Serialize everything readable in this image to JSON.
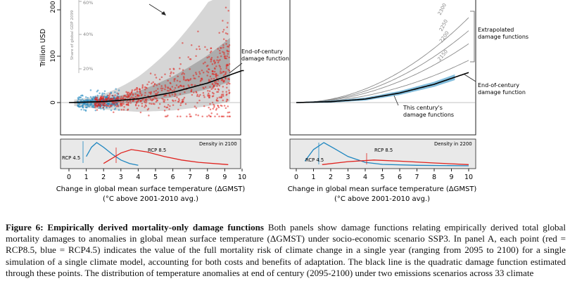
{
  "figure": {
    "panel_a": {
      "y_axis_label": "Trillion USD",
      "y_ticks": [
        "0",
        "100",
        "200"
      ],
      "share_axis_label": "Share of global GDP 2099",
      "share_ticks": [
        "20%",
        "40%",
        "60%"
      ],
      "annotation": "End-of-century damage function",
      "density_label": "Density in 2100",
      "rcp45_label": "RCP 4.5",
      "rcp85_label": "RCP 8.5",
      "x_ticks": [
        "0",
        "1",
        "2",
        "3",
        "4",
        "5",
        "6",
        "7",
        "8",
        "9",
        "10"
      ],
      "x_label_line1": "Change in global mean surface temperature (ΔGMST)",
      "x_label_line2": "(°C above 2001-2010 avg.)"
    },
    "panel_b": {
      "extrapolated_label": "Extrapolated damage functions",
      "end_label": "End-of-century damage function",
      "this_century_label": "This century's damage functions",
      "year_labels": [
        "2300",
        "2250",
        "2200",
        "2150"
      ],
      "density_label": "Density in 2200",
      "rcp45_label": "RCP 4.5",
      "rcp85_label": "RCP 8.5",
      "x_ticks": [
        "0",
        "1",
        "2",
        "3",
        "4",
        "5",
        "6",
        "7",
        "8",
        "9",
        "10"
      ],
      "x_label_line1": "Change in global mean surface temperature (ΔGMST)",
      "x_label_line2": "(°C above 2001-2010 avg.)"
    }
  },
  "caption": {
    "title": "Figure 6: Empirically derived mortality-only damage functions",
    "text": " Both panels show damage functions relating empirically derived total global mortality damages to anomalies in global mean surface temperature (ΔGMST) under socio-economic scenario SSP3. In panel A, each point (red = RCP8.5, blue = RCP4.5) indicates the value of the full mortality risk of climate change in a single year (ranging from 2095 to 2100) for a single simulation of a single climate model, accounting for both costs and benefits of adaptation. The black line is the quadratic damage function estimated through these points. The distribution of temperature anomalies at end of century (2095-2100) under two emissions scenarios across 33 climate"
  },
  "colors": {
    "rcp45": "#1e86c0",
    "rcp85": "#e0221e",
    "band": "#cfcfcf",
    "band_dark": "#9a9a9a"
  },
  "chart_data": [
    {
      "type": "scatter",
      "panel": "A",
      "xlabel": "Change in global mean surface temperature (ΔGMST) (°C above 2001-2010 avg.)",
      "ylabel": "Trillion USD",
      "xlim": [
        -0.5,
        10.2
      ],
      "ylim": [
        -50,
        225
      ],
      "series": [
        {
          "name": "RCP 4.5",
          "x_range": [
            0.5,
            2.9
          ],
          "y_range": [
            -20,
            40
          ]
        },
        {
          "name": "RCP 8.5",
          "x_range": [
            1.5,
            9.3
          ],
          "y_range": [
            -30,
            205
          ]
        }
      ],
      "damage_function": {
        "type": "quadratic",
        "x": [
          0,
          2,
          4,
          6,
          8,
          10
        ],
        "y": [
          0,
          2,
          8,
          22,
          42,
          69
        ]
      },
      "density": {
        "label": "Density in 2100",
        "rcp45": {
          "x": [
            1,
            1.3,
            1.6,
            2.0,
            2.5,
            3.0,
            3.5,
            4.0
          ],
          "y": [
            0.4,
            0.8,
            1.0,
            0.8,
            0.5,
            0.25,
            0.1,
            0.02
          ]
        },
        "rcp85": {
          "x": [
            2.0,
            3.0,
            3.6,
            4.5,
            5.5,
            6.5,
            7.5,
            9.2
          ],
          "y": [
            0.1,
            0.55,
            0.7,
            0.6,
            0.4,
            0.25,
            0.15,
            0.05
          ]
        }
      }
    },
    {
      "type": "line",
      "panel": "B",
      "xlabel": "Change in global mean surface temperature (ΔGMST) (°C above 2001-2010 avg.)",
      "xlim": [
        -0.5,
        10.2
      ],
      "series": [
        {
          "name": "2300",
          "x": [
            0,
            2,
            4,
            6,
            8,
            10
          ],
          "y": [
            0,
            6,
            25,
            60,
            115,
            195
          ]
        },
        {
          "name": "2250",
          "x": [
            0,
            2,
            4,
            6,
            8,
            10
          ],
          "y": [
            0,
            5,
            21,
            50,
            95,
            165
          ]
        },
        {
          "name": "2200",
          "x": [
            0,
            2,
            4,
            6,
            8,
            10
          ],
          "y": [
            0,
            4,
            17,
            40,
            77,
            135
          ]
        },
        {
          "name": "2150",
          "x": [
            0,
            2,
            4,
            6,
            8,
            10
          ],
          "y": [
            0,
            3,
            12,
            29,
            55,
            97
          ]
        },
        {
          "name": "End-of-century damage function",
          "x": [
            0,
            2,
            4,
            6,
            8,
            10
          ],
          "y": [
            0,
            2,
            8,
            22,
            42,
            69
          ]
        }
      ],
      "density": {
        "label": "Density in 2200",
        "rcp45": {
          "x": [
            0.5,
            1.0,
            1.6,
            2.2,
            3.0,
            4.0,
            5.0,
            7.0,
            10.0
          ],
          "y": [
            0.2,
            0.7,
            1.0,
            0.75,
            0.4,
            0.15,
            0.06,
            0.02,
            0.0
          ]
        },
        "rcp85": {
          "x": [
            1.5,
            3.0,
            4.5,
            6.0,
            8.0,
            10.0
          ],
          "y": [
            0.05,
            0.18,
            0.25,
            0.2,
            0.12,
            0.05
          ]
        }
      }
    }
  ]
}
